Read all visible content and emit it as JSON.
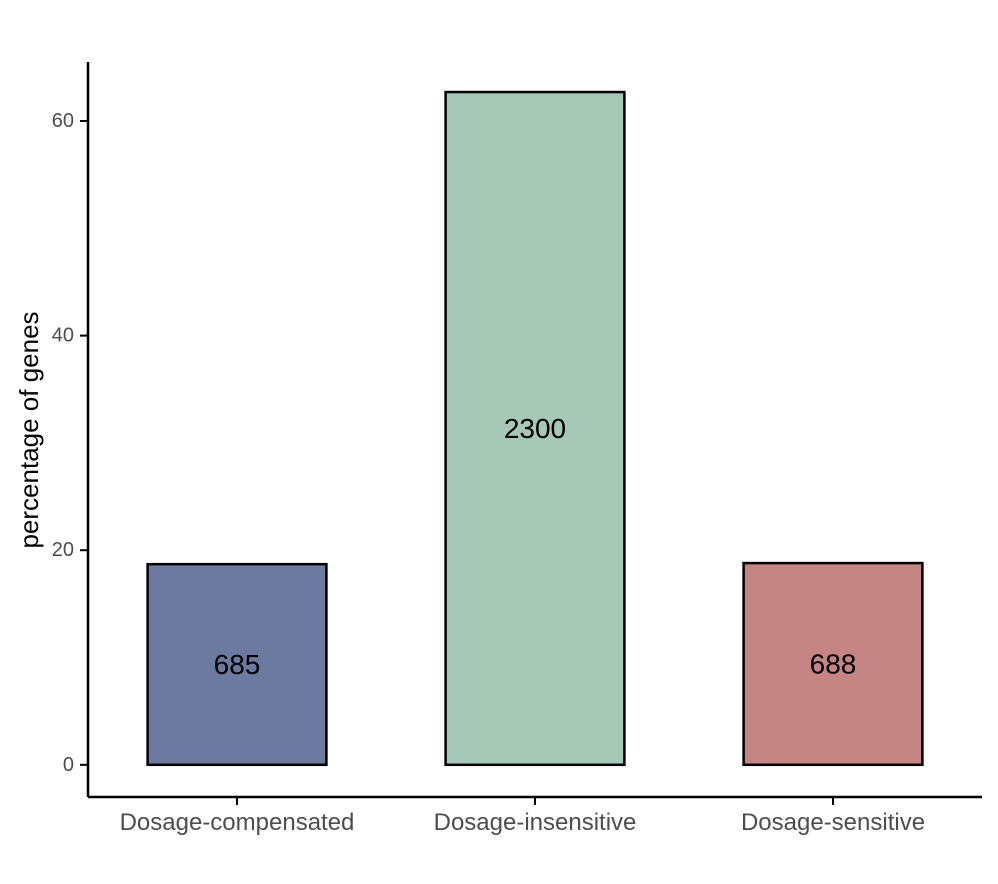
{
  "chart_data": {
    "type": "bar",
    "title": "",
    "xlabel": "",
    "ylabel": "percentage of genes",
    "categories": [
      "Dosage-compensated",
      "Dosage-insensitive",
      "Dosage-sensitive"
    ],
    "values": [
      18.7,
      62.7,
      18.8
    ],
    "data_labels": [
      "685",
      "2300",
      "688"
    ],
    "bar_colors": [
      "#6b7a9e",
      "#a6c8b7",
      "#c68585"
    ],
    "bar_stroke": "#000000",
    "y_ticks": [
      0,
      20,
      40,
      60
    ],
    "ylim": [
      -3,
      65.5
    ],
    "grid": false,
    "legend": "none"
  }
}
